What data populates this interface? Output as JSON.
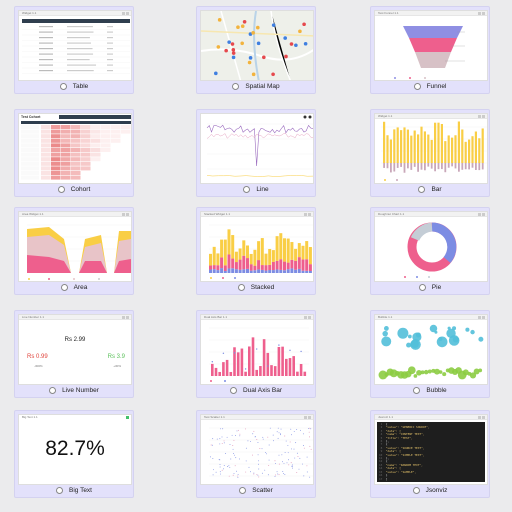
{
  "cards": [
    {
      "label": "Table"
    },
    {
      "label": "Spatial Map"
    },
    {
      "label": "Funnel"
    },
    {
      "label": "Cohort"
    },
    {
      "label": "Line"
    },
    {
      "label": "Bar"
    },
    {
      "label": "Area"
    },
    {
      "label": "Stacked"
    },
    {
      "label": "Pie"
    },
    {
      "label": "Live Number"
    },
    {
      "label": "Dual Axis Bar"
    },
    {
      "label": "Bubble"
    },
    {
      "label": "Big Text"
    },
    {
      "label": "Scatter"
    },
    {
      "label": "Jsonviz"
    }
  ],
  "panels": {
    "table": {
      "title": "Widget 1.1"
    },
    "map": {
      "title": ""
    },
    "funnel": {
      "title": "Test Funnel 1.1"
    },
    "cohort": {
      "title": "Test Cohort"
    },
    "bar": {
      "title": "Widget 1.1"
    },
    "area": {
      "title": "Area Widget 1.1"
    },
    "stacked": {
      "title": "Stacked Widget 1.1"
    },
    "pie": {
      "title": "Doughnut Chart 1.1"
    },
    "live": {
      "title": "Live Number 1.1"
    },
    "dual": {
      "title": "Dual Axis Bar 1.1"
    },
    "bubble": {
      "title": "Bubble 1.1"
    },
    "bigtext": {
      "title": "Big Text 1.1"
    },
    "scatter": {
      "title": "Test Scatter 1.1"
    },
    "json": {
      "title": "Jsonviz 1.1"
    }
  },
  "live_number": {
    "main": "Rs 2.99",
    "left": "Rs 0.99",
    "left_sub": "-300%",
    "right": "Rs 3.9",
    "right_sub": "+30%"
  },
  "big_text": {
    "value": "82.7%"
  },
  "json_lines": [
    "{",
    "\"value\": \"GENERIC SOURCE\",",
    "\"data\": [",
    "\"name\": \"CONTENT TEXT\",",
    "\"title\": \"TEST\",",
    "},",
    "{",
    "\"value\": \"SOURCE TEXT\",",
    "\"data\": [",
    "\"value\": \"SIMPLE TEXT\",",
    "},",
    "{",
    "\"name\": \"RANDOM TEXT\",",
    "\"data\": [",
    "\"value\": \"SAMPLE\",",
    "}",
    "]"
  ],
  "colors": {
    "card_bg": "#e3e1fb",
    "yellow": "#f9ce45",
    "pink": "#ee5f8d",
    "blue": "#7c8ce3",
    "purple": "#9b6cbf",
    "teal": "#52bfd9",
    "green": "#8ccc43"
  }
}
